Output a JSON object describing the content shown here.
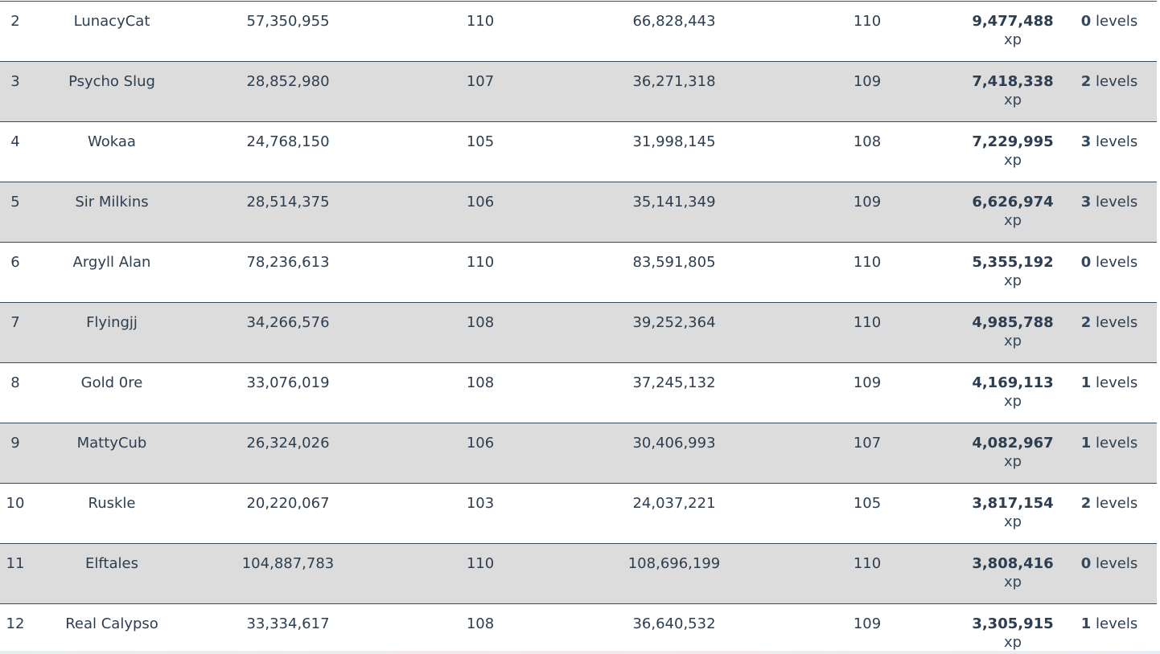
{
  "leaderboard": {
    "rows": [
      {
        "rank": "2",
        "name": "LunacyCat",
        "start_xp": "57,350,955",
        "start_level": "110",
        "end_xp": "66,828,443",
        "end_level": "110",
        "gain": "9,477,488",
        "gain_unit": "xp",
        "level_diff": "0",
        "level_diff_unit": "levels",
        "shaded": false
      },
      {
        "rank": "3",
        "name": "Psycho Slug",
        "start_xp": "28,852,980",
        "start_level": "107",
        "end_xp": "36,271,318",
        "end_level": "109",
        "gain": "7,418,338",
        "gain_unit": "xp",
        "level_diff": "2",
        "level_diff_unit": "levels",
        "shaded": true
      },
      {
        "rank": "4",
        "name": "Wokaa",
        "start_xp": "24,768,150",
        "start_level": "105",
        "end_xp": "31,998,145",
        "end_level": "108",
        "gain": "7,229,995",
        "gain_unit": "xp",
        "level_diff": "3",
        "level_diff_unit": "levels",
        "shaded": false
      },
      {
        "rank": "5",
        "name": "Sir Milkins",
        "start_xp": "28,514,375",
        "start_level": "106",
        "end_xp": "35,141,349",
        "end_level": "109",
        "gain": "6,626,974",
        "gain_unit": "xp",
        "level_diff": "3",
        "level_diff_unit": "levels",
        "shaded": true
      },
      {
        "rank": "6",
        "name": "Argyll Alan",
        "start_xp": "78,236,613",
        "start_level": "110",
        "end_xp": "83,591,805",
        "end_level": "110",
        "gain": "5,355,192",
        "gain_unit": "xp",
        "level_diff": "0",
        "level_diff_unit": "levels",
        "shaded": false
      },
      {
        "rank": "7",
        "name": "Flyingjj",
        "start_xp": "34,266,576",
        "start_level": "108",
        "end_xp": "39,252,364",
        "end_level": "110",
        "gain": "4,985,788",
        "gain_unit": "xp",
        "level_diff": "2",
        "level_diff_unit": "levels",
        "shaded": true
      },
      {
        "rank": "8",
        "name": "Gold 0re",
        "start_xp": "33,076,019",
        "start_level": "108",
        "end_xp": "37,245,132",
        "end_level": "109",
        "gain": "4,169,113",
        "gain_unit": "xp",
        "level_diff": "1",
        "level_diff_unit": "levels",
        "shaded": false
      },
      {
        "rank": "9",
        "name": "MattyCub",
        "start_xp": "26,324,026",
        "start_level": "106",
        "end_xp": "30,406,993",
        "end_level": "107",
        "gain": "4,082,967",
        "gain_unit": "xp",
        "level_diff": "1",
        "level_diff_unit": "levels",
        "shaded": true
      },
      {
        "rank": "10",
        "name": "Ruskle",
        "start_xp": "20,220,067",
        "start_level": "103",
        "end_xp": "24,037,221",
        "end_level": "105",
        "gain": "3,817,154",
        "gain_unit": "xp",
        "level_diff": "2",
        "level_diff_unit": "levels",
        "shaded": false
      },
      {
        "rank": "11",
        "name": "Elftales",
        "start_xp": "104,887,783",
        "start_level": "110",
        "end_xp": "108,696,199",
        "end_level": "110",
        "gain": "3,808,416",
        "gain_unit": "xp",
        "level_diff": "0",
        "level_diff_unit": "levels",
        "shaded": true
      },
      {
        "rank": "12",
        "name": "Real Calypso",
        "start_xp": "33,334,617",
        "start_level": "108",
        "end_xp": "36,640,532",
        "end_level": "109",
        "gain": "3,305,915",
        "gain_unit": "xp",
        "level_diff": "1",
        "level_diff_unit": "levels",
        "shaded": false
      }
    ]
  },
  "colors": {
    "text": "#2d3e50",
    "row_shade": "#dcdcdc",
    "row_border": "#34495e",
    "background": "#ffffff"
  }
}
